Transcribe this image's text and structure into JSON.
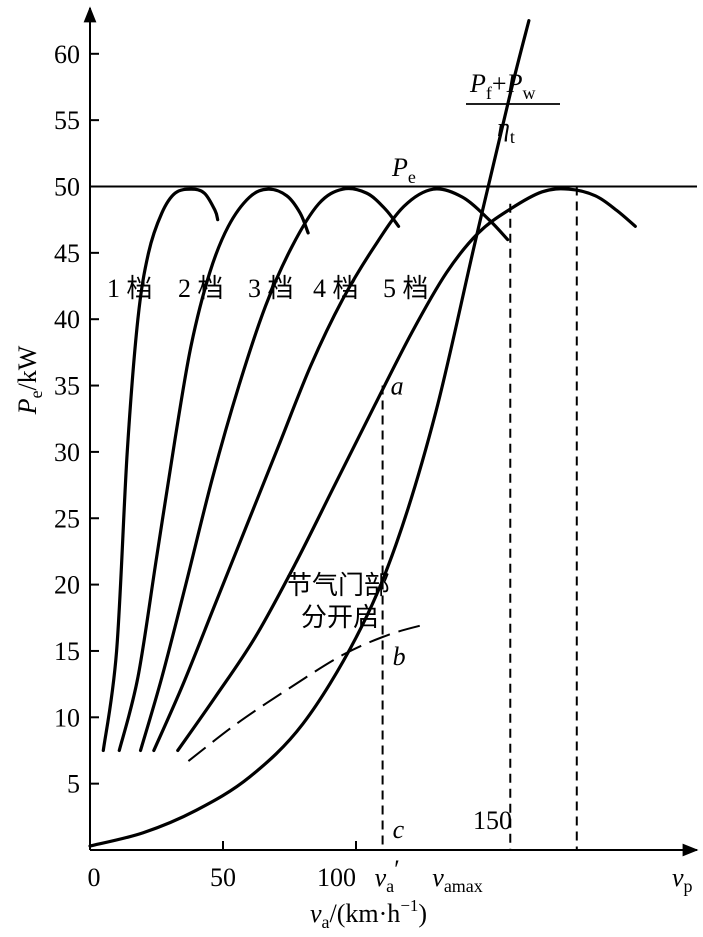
{
  "chart_data": {
    "type": "line",
    "ylabel_main": "P",
    "ylabel_sub": "e",
    "ylabel_unit": "/kW",
    "xlabel_main": "v",
    "xlabel_sub": "a",
    "xlabel_unit": "/(km·h",
    "xlabel_exp": "−1",
    "xlabel_close": ")",
    "y_ticks": [
      5,
      10,
      15,
      20,
      25,
      30,
      35,
      40,
      45,
      50,
      55,
      60
    ],
    "x_ticks": [
      50,
      100
    ],
    "x_tick_150": "150",
    "xlim": [
      0,
      230
    ],
    "ylim": [
      0,
      65
    ],
    "pe_label_main": "P",
    "pe_label_sub": "e",
    "pe_level": 50,
    "resist_label": {
      "p1": "P",
      "s1": "f",
      "plus": "+",
      "p2": "P",
      "s2": "w",
      "den": "η",
      "den_sub": "t"
    },
    "gear_labels": [
      "1 档",
      "2 档",
      "3 档",
      "4 档",
      "5 档"
    ],
    "throttle_label_lines": [
      "节气门部",
      "分开启"
    ],
    "point_labels": {
      "a": "a",
      "b": "b",
      "c": "c"
    },
    "x_marks": {
      "va_prime_main": "v",
      "va_prime_sub": "a",
      "va_prime_prime": "′",
      "vamax_main": "v",
      "vamax_sub": "amax",
      "vp_main": "v",
      "vp_sub": "p"
    },
    "series": [
      {
        "points": [
          [
            5,
            7.5
          ],
          [
            10,
            15
          ],
          [
            14,
            30
          ],
          [
            18,
            40
          ],
          [
            22,
            45
          ],
          [
            27,
            48
          ],
          [
            32,
            49.5
          ],
          [
            38,
            49.8
          ],
          [
            43,
            49.5
          ],
          [
            47,
            48.2
          ],
          [
            48,
            47.5
          ]
        ]
      },
      {
        "points": [
          [
            11,
            7.5
          ],
          [
            18,
            13
          ],
          [
            25,
            22
          ],
          [
            32,
            31
          ],
          [
            38,
            38
          ],
          [
            45,
            43.5
          ],
          [
            52,
            47
          ],
          [
            60,
            49.2
          ],
          [
            67,
            49.8
          ],
          [
            74,
            49.3
          ],
          [
            79,
            48
          ],
          [
            82,
            46.5
          ]
        ]
      },
      {
        "points": [
          [
            19,
            7.5
          ],
          [
            27,
            13
          ],
          [
            36,
            20
          ],
          [
            46,
            28
          ],
          [
            56,
            35
          ],
          [
            66,
            41
          ],
          [
            76,
            45.5
          ],
          [
            86,
            48.7
          ],
          [
            95,
            49.8
          ],
          [
            104,
            49.5
          ],
          [
            111,
            48.3
          ],
          [
            116,
            47
          ]
        ]
      },
      {
        "points": [
          [
            24,
            7.5
          ],
          [
            35,
            12.5
          ],
          [
            47,
            18.5
          ],
          [
            59,
            24.5
          ],
          [
            71,
            30.5
          ],
          [
            83,
            36.5
          ],
          [
            95,
            41.5
          ],
          [
            107,
            45.5
          ],
          [
            118,
            48.5
          ],
          [
            129,
            49.8
          ],
          [
            140,
            49.2
          ],
          [
            150,
            47.5
          ],
          [
            157,
            46
          ]
        ]
      },
      {
        "points": [
          [
            33,
            7.5
          ],
          [
            47,
            11.5
          ],
          [
            62,
            16
          ],
          [
            77,
            21.5
          ],
          [
            92,
            27.5
          ],
          [
            107,
            33.5
          ],
          [
            121,
            39
          ],
          [
            134,
            43.5
          ],
          [
            146,
            46.5
          ],
          [
            158,
            48.3
          ],
          [
            170,
            49.6
          ],
          [
            180,
            49.8
          ],
          [
            190,
            49.3
          ],
          [
            198,
            48.2
          ],
          [
            205,
            47
          ]
        ]
      },
      {
        "points": [
          [
            0,
            0.3
          ],
          [
            20,
            1.3
          ],
          [
            40,
            3
          ],
          [
            60,
            5.5
          ],
          [
            80,
            9.5
          ],
          [
            100,
            16
          ],
          [
            115,
            23
          ],
          [
            130,
            33
          ],
          [
            145,
            46
          ],
          [
            158,
            57
          ],
          [
            165,
            62.5
          ]
        ]
      }
    ],
    "throttle_curve": [
      [
        37,
        6.7
      ],
      [
        55,
        9.5
      ],
      [
        75,
        12.2
      ],
      [
        95,
        14.7
      ],
      [
        112,
        16.2
      ],
      [
        126,
        17
      ]
    ],
    "va_prime_x": 110,
    "vamax_x": 158,
    "vp_x": 183,
    "point_a_y": 35,
    "point_b_y": 16.2
  }
}
